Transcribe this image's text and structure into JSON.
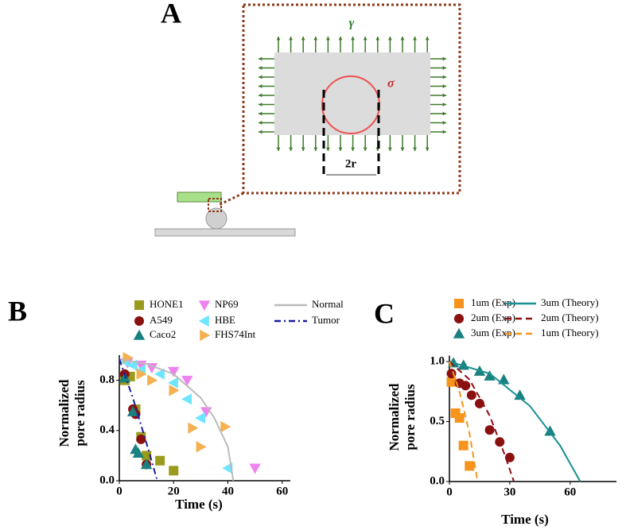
{
  "figure_a": {
    "label": "A",
    "gamma": "γ",
    "sigma": "σ",
    "pore": "2r"
  },
  "chart_data": [
    {
      "type": "scatter",
      "panel_label": "B",
      "xlabel": "Time (s)",
      "ylabel": [
        "Normalized",
        "pore radius"
      ],
      "xlim": [
        0,
        63
      ],
      "xticks": [
        0,
        20,
        40,
        60
      ],
      "ylim": [
        0,
        1.0
      ],
      "yticks": [
        {
          "value": 0,
          "label": "0.0"
        },
        0.4,
        0.8
      ],
      "series": [
        {
          "name": "HONE1",
          "kind": "scatter",
          "marker": "square",
          "color": "#9a9a1c",
          "x": [
            2,
            4,
            6,
            8,
            10,
            15,
            20
          ],
          "values": [
            0.8,
            0.83,
            0.57,
            0.35,
            0.2,
            0.16,
            0.08
          ]
        },
        {
          "name": "A549",
          "kind": "scatter",
          "marker": "circle",
          "color": "#8b1010",
          "x": [
            2,
            5,
            6,
            8,
            10
          ],
          "values": [
            0.85,
            0.57,
            0.53,
            0.33,
            0.13
          ]
        },
        {
          "name": "Caco2",
          "kind": "scatter",
          "marker": "triangle-up",
          "color": "#1a8080",
          "x": [
            2,
            5,
            6,
            7,
            10
          ],
          "values": [
            0.82,
            0.55,
            0.25,
            0.22,
            0.13
          ]
        },
        {
          "name": "NP69",
          "kind": "scatter",
          "marker": "triangle-down",
          "color": "#ee82ee",
          "x": [
            3,
            8,
            12,
            20,
            25,
            32,
            50
          ],
          "values": [
            0.94,
            0.92,
            0.9,
            0.87,
            0.8,
            0.55,
            0.1
          ]
        },
        {
          "name": "HBE",
          "kind": "scatter",
          "marker": "triangle-left",
          "color": "#6ee6ff",
          "x": [
            2,
            5,
            8,
            15,
            20,
            25,
            30,
            40
          ],
          "values": [
            0.95,
            0.92,
            0.88,
            0.85,
            0.78,
            0.65,
            0.5,
            0.1
          ]
        },
        {
          "name": "FHS74Int",
          "kind": "scatter",
          "marker": "triangle-right",
          "color": "#f5b050",
          "x": [
            3,
            8,
            12,
            20,
            27,
            30,
            39
          ],
          "values": [
            0.98,
            0.85,
            0.8,
            0.72,
            0.42,
            0.27,
            0.43
          ]
        },
        {
          "name": "Normal",
          "kind": "line",
          "dash": "solid",
          "color": "#bbbbbb",
          "x": [
            0,
            10,
            20,
            30,
            35,
            40,
            42
          ],
          "values": [
            0.97,
            0.93,
            0.85,
            0.66,
            0.5,
            0.27,
            0
          ]
        },
        {
          "name": "Tumor",
          "kind": "line",
          "dash": "dashdot",
          "color": "#1c1ca0",
          "x": [
            0,
            5,
            10,
            14
          ],
          "values": [
            0.97,
            0.66,
            0.3,
            0
          ]
        }
      ]
    },
    {
      "type": "scatter",
      "panel_label": "C",
      "xlabel": "Time (s)",
      "ylabel": [
        "Normalized",
        "pore radius"
      ],
      "xlim": [
        0,
        83
      ],
      "xticks": [
        0,
        30,
        60
      ],
      "ylim": [
        0,
        1.05
      ],
      "yticks": [
        {
          "value": 0,
          "label": "0.0"
        },
        0.5,
        {
          "value": 1,
          "label": "1.0"
        }
      ],
      "series": [
        {
          "name": "1um (Exp)",
          "kind": "scatter",
          "marker": "square",
          "color": "#f7941d",
          "x": [
            1,
            3,
            5,
            7,
            10
          ],
          "values": [
            0.83,
            0.57,
            0.53,
            0.3,
            0.13
          ]
        },
        {
          "name": "2um (Exp)",
          "kind": "scatter",
          "marker": "circle",
          "color": "#8b1010",
          "x": [
            1,
            5,
            8,
            11,
            15,
            20,
            25,
            30
          ],
          "values": [
            0.9,
            0.82,
            0.8,
            0.72,
            0.65,
            0.43,
            0.33,
            0.2
          ]
        },
        {
          "name": "3um (Exp)",
          "kind": "scatter",
          "marker": "triangle-up",
          "color": "#1a8080",
          "x": [
            2,
            7,
            15,
            20,
            27,
            35,
            50
          ],
          "values": [
            0.99,
            0.97,
            0.92,
            0.88,
            0.85,
            0.72,
            0.42
          ]
        },
        {
          "name": "3um (Theory)",
          "kind": "line",
          "dash": "solid",
          "color": "#1a9090",
          "x": [
            0,
            20,
            40,
            55,
            65
          ],
          "values": [
            1,
            0.9,
            0.63,
            0.3,
            0
          ]
        },
        {
          "name": "2um (Theory)",
          "kind": "line",
          "dash": "dash",
          "color": "#8b1010",
          "x": [
            0,
            10,
            20,
            28,
            32
          ],
          "values": [
            1,
            0.85,
            0.55,
            0.2,
            0
          ]
        },
        {
          "name": "1um (Theory)",
          "kind": "line",
          "dash": "dash",
          "color": "#f7941d",
          "x": [
            0,
            5,
            10,
            14
          ],
          "values": [
            1,
            0.75,
            0.4,
            0
          ]
        }
      ]
    }
  ]
}
